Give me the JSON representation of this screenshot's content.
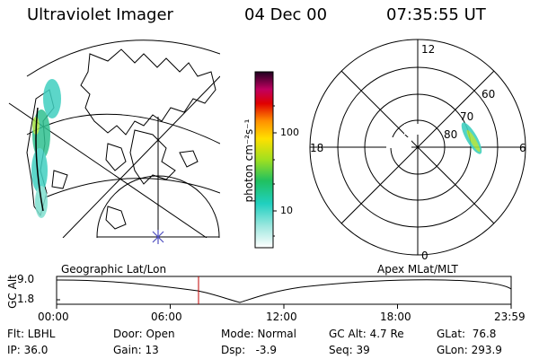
{
  "header": {
    "title": "Ultraviolet Imager",
    "date": "04 Dec 00",
    "time": "07:35:55 UT"
  },
  "colorbar": {
    "label": "photon cm⁻²s⁻¹",
    "ticks": [
      "100",
      "10"
    ]
  },
  "polar_plot": {
    "mlt_labels": [
      "12",
      "18",
      "6",
      "0"
    ],
    "lat_labels": [
      "60",
      "70",
      "80"
    ]
  },
  "altitude_panel": {
    "y_label": "GC Alt",
    "y_ticks": [
      "9.0",
      "1.8"
    ],
    "left_title": "Geographic Lat/Lon",
    "right_title": "Apex MLat/MLT",
    "x_ticks": [
      "00:00",
      "06:00",
      "12:00",
      "18:00",
      "23:59"
    ]
  },
  "footer": {
    "row1": {
      "filter": "Flt: LBHL",
      "door": "Door: Open",
      "mode": "Mode: Normal",
      "gc_alt": "GC Alt: 4.7 Re",
      "glat": "GLat:  76.8"
    },
    "row2": {
      "ip": "IP: 36.0",
      "gain": "Gain: 13",
      "dsp": "Dsp:   -3.9",
      "seq": "Seq: 39",
      "glon": "GLon: 293.9"
    }
  },
  "colors": {
    "aurora_low": "#40d0c0",
    "aurora_mid": "#30c090",
    "aurora_high": "#a0e040",
    "marker": "#c00000"
  }
}
